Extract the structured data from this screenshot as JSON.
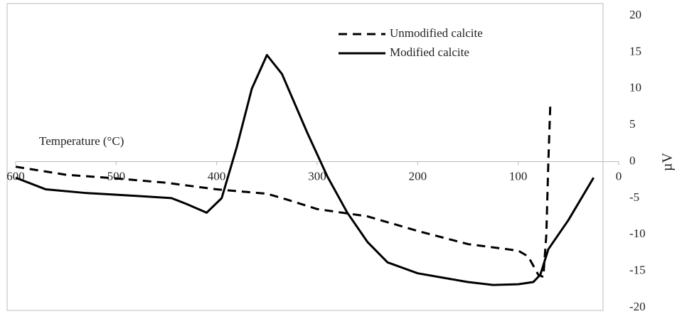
{
  "chart_data": {
    "type": "line",
    "xlabel": "Temperature (°C)",
    "ylabel": "µV",
    "xlim": [
      600,
      0
    ],
    "xticks": [
      600,
      500,
      400,
      300,
      200,
      100,
      0
    ],
    "ylim": [
      -20,
      20
    ],
    "yticks": [
      -20,
      -15,
      -10,
      -5,
      0,
      5,
      10,
      15,
      20
    ],
    "legend": "top-right",
    "series": [
      {
        "name": "Unmodified calcite",
        "color": "#000000",
        "dash": true,
        "x": [
          600,
          550,
          500,
          450,
          400,
          350,
          330,
          300,
          250,
          200,
          150,
          100,
          90,
          80,
          75,
          72,
          70,
          68
        ],
        "values": [
          -0.7,
          -1.8,
          -2.3,
          -2.9,
          -3.8,
          -4.4,
          -5.2,
          -6.5,
          -7.5,
          -9.5,
          -11.3,
          -12.2,
          -13,
          -15.5,
          -15.8,
          -10,
          0,
          8
        ]
      },
      {
        "name": "Modified calcite",
        "color": "#000000",
        "dash": false,
        "x": [
          600,
          570,
          530,
          480,
          445,
          430,
          410,
          395,
          380,
          365,
          350,
          335,
          310,
          290,
          270,
          250,
          230,
          200,
          150,
          125,
          100,
          85,
          78,
          70,
          50,
          25
        ],
        "values": [
          -2.2,
          -3.8,
          -4.3,
          -4.7,
          -5,
          -5.8,
          -7,
          -5,
          2,
          10,
          14.6,
          12,
          4,
          -2,
          -7,
          -11,
          -13.8,
          -15.3,
          -16.5,
          -16.9,
          -16.8,
          -16.5,
          -15.5,
          -12,
          -8,
          -2.2
        ]
      }
    ]
  }
}
